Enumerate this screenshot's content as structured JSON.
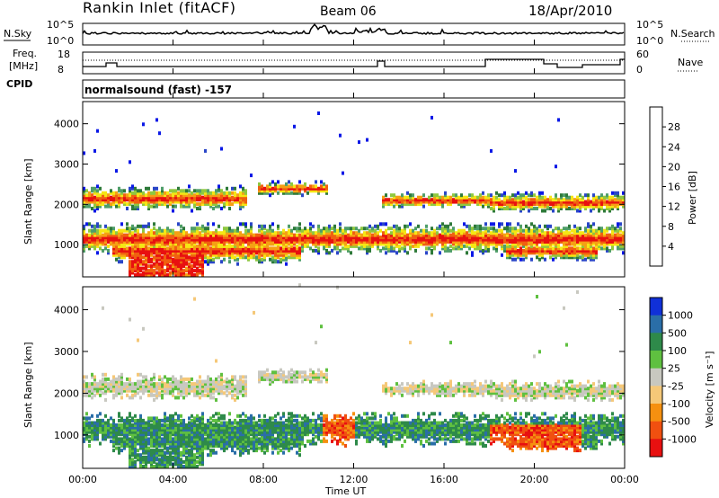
{
  "header": {
    "station": "Rankin Inlet (fitACF)",
    "beam": "Beam 06",
    "date": "18/Apr/2010"
  },
  "nsky_panel": {
    "left_label": "N.Sky",
    "right_label": "N.Search",
    "left_ticks": [
      "10^5",
      "10^0"
    ],
    "right_ticks": [
      "10^5",
      "10^0"
    ]
  },
  "freq_panel": {
    "label_line1": "Freq.",
    "label_line2": "[MHz]",
    "cpid_label": "CPID",
    "right_label": "Nave",
    "left_ticks": [
      "18",
      "8"
    ],
    "right_ticks": [
      "60",
      "0"
    ]
  },
  "cpid_text": "normalsound (fast) -157",
  "chart_data": [
    {
      "type": "heatmap",
      "name": "power",
      "ylabel": "Slant Range [km]",
      "y_ticks": [
        1000,
        2000,
        3000,
        4000
      ],
      "ylim": [
        200,
        4550
      ],
      "colorbar": {
        "label": "Power [dB]",
        "ticks": [
          "4",
          "8",
          "12",
          "16",
          "20",
          "24",
          "28"
        ],
        "colors": [
          "#0a18e6",
          "#2a46c8",
          "#2e7a3a",
          "#4f9e6a",
          "#8fc840",
          "#f5e614",
          "#f5a014",
          "#f06010",
          "#e81010"
        ]
      }
    },
    {
      "type": "heatmap",
      "name": "velocity",
      "ylabel": "Slant Range [km]",
      "y_ticks": [
        1000,
        2000,
        3000,
        4000
      ],
      "ylim": [
        200,
        4550
      ],
      "colorbar": {
        "label": "Velocity [m s⁻¹]",
        "ticks": [
          "1000",
          "500",
          "100",
          "25",
          "-25",
          "-100",
          "-500",
          "-1000"
        ],
        "colors": [
          "#1030d8",
          "#2a6ea8",
          "#2e8a4a",
          "#5fc040",
          "#c8c8c0",
          "#f5c878",
          "#f59010",
          "#f05010",
          "#e81010"
        ]
      }
    }
  ],
  "x_axis": {
    "label": "Time UT",
    "ticks": [
      "00:00",
      "04:00",
      "08:00",
      "12:00",
      "16:00",
      "20:00",
      "00:00"
    ]
  }
}
